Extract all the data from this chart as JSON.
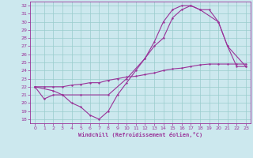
{
  "bg_color": "#cce8ee",
  "line_color": "#993399",
  "grid_color": "#99cccc",
  "xlabel": "Windchill (Refroidissement éolien,°C)",
  "xlim": [
    -0.5,
    23.5
  ],
  "ylim": [
    17.5,
    32.5
  ],
  "xticks": [
    0,
    1,
    2,
    3,
    4,
    5,
    6,
    7,
    8,
    9,
    10,
    11,
    12,
    13,
    14,
    15,
    16,
    17,
    18,
    19,
    20,
    21,
    22,
    23
  ],
  "yticks": [
    18,
    19,
    20,
    21,
    22,
    23,
    24,
    25,
    26,
    27,
    28,
    29,
    30,
    31,
    32
  ],
  "line1_x": [
    0,
    1,
    2,
    3,
    4,
    5,
    6,
    7,
    8,
    9,
    10,
    11,
    12,
    13,
    14,
    15,
    16,
    17,
    18,
    19,
    20,
    21,
    22,
    23
  ],
  "line1_y": [
    22,
    20.5,
    21,
    21,
    20,
    19.5,
    18.5,
    18,
    19,
    21,
    22.5,
    24,
    25.5,
    27.5,
    30,
    31.5,
    32,
    32,
    31.5,
    31.5,
    30,
    27,
    24.5,
    24.5
  ],
  "line2_x": [
    0,
    2,
    3,
    5,
    8,
    10,
    12,
    13,
    14,
    15,
    16,
    17,
    18,
    20,
    21,
    23
  ],
  "line2_y": [
    22,
    21.5,
    21,
    21,
    21,
    23,
    25.5,
    27,
    28,
    30.5,
    31.5,
    32,
    31.5,
    30,
    27,
    24.5
  ],
  "line3_x": [
    0,
    1,
    2,
    3,
    4,
    5,
    6,
    7,
    8,
    9,
    10,
    11,
    12,
    13,
    14,
    15,
    16,
    17,
    18,
    19,
    20,
    21,
    22,
    23
  ],
  "line3_y": [
    22,
    22,
    22,
    22,
    22.2,
    22.3,
    22.5,
    22.5,
    22.8,
    23,
    23.2,
    23.3,
    23.5,
    23.7,
    24,
    24.2,
    24.3,
    24.5,
    24.7,
    24.8,
    24.8,
    24.8,
    24.8,
    24.8
  ]
}
